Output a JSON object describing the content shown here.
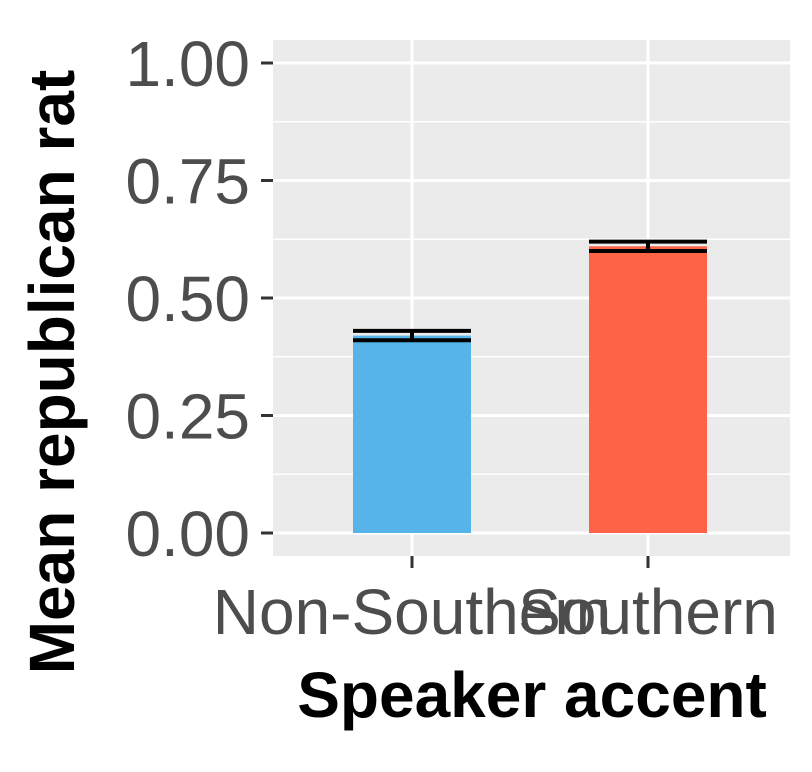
{
  "chart_data": {
    "type": "bar",
    "title": "",
    "xlabel": "Speaker accent",
    "ylabel": "Mean republican rat",
    "categories": [
      "Non-Southern",
      "Southern"
    ],
    "values": [
      0.42,
      0.61
    ],
    "error": [
      {
        "lower": 0.41,
        "upper": 0.43
      },
      {
        "lower": 0.6,
        "upper": 0.62
      }
    ],
    "colors": [
      "#56B4E9",
      "#FF6347"
    ],
    "ylim": [
      0,
      1.05
    ],
    "yticks": [
      0.0,
      0.25,
      0.5,
      0.75,
      1.0
    ],
    "ytick_labels": [
      "0.00",
      "0.25",
      "0.50",
      "0.75",
      "1.00"
    ],
    "grid": true,
    "panel_background": "#EBEBEB",
    "legend": "none"
  }
}
